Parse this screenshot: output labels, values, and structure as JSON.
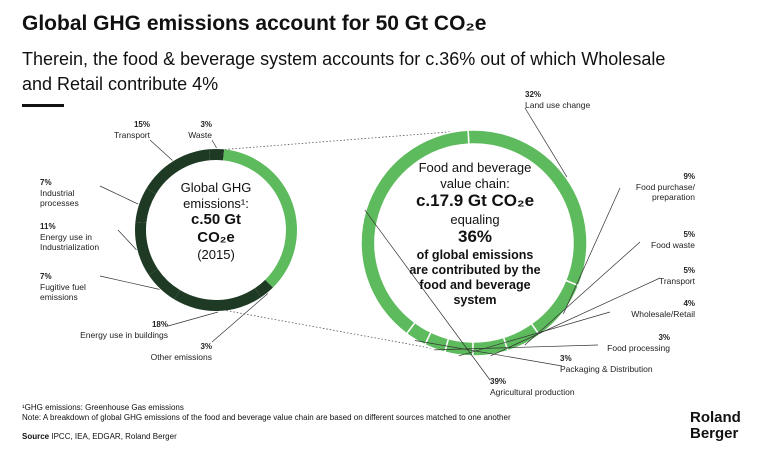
{
  "header": {
    "title": "Global GHG emissions account for 50 Gt CO₂e",
    "subtitle": "Therein, the food & beverage system accounts for c.36% out of which Wholesale and Retail contribute 4%"
  },
  "chart_data": [
    {
      "type": "pie",
      "style": "donut",
      "categories": [
        "Transport",
        "Waste",
        null,
        "Other emissions",
        "Energy use in buildings",
        "Fugitive fuel emissions",
        "Energy use in Industrialization",
        "Industrial processes"
      ],
      "values": [
        15,
        3,
        36,
        3,
        18,
        7,
        11,
        7
      ],
      "value_labels": [
        "15%",
        "3%",
        null,
        "3%",
        "18%",
        "7%",
        "11%",
        "7%"
      ],
      "colors": [
        "#1f3a24",
        "#1f3a24",
        "#5dbb5d",
        "#1f3a24",
        "#1f3a24",
        "#1f3a24",
        "#1f3a24",
        "#1f3a24"
      ],
      "center_text": [
        "Global GHG",
        "emissions¹:",
        "c.50 Gt",
        "CO₂e",
        "(2015)"
      ]
    },
    {
      "type": "pie",
      "style": "donut",
      "categories": [
        "Land use change",
        "Food purchase/ preparation",
        "Food waste",
        "Transport",
        "Wholesale/Retail",
        "Food processing",
        "Packaging & Distribution",
        "Agricultural production"
      ],
      "values": [
        32,
        9,
        5,
        5,
        4,
        3,
        3,
        39
      ],
      "value_labels": [
        "32%",
        "9%",
        "5%",
        "5%",
        "4%",
        "3%",
        "3%",
        "39%"
      ],
      "colors": [
        "#5dbb5d",
        "#5dbb5d",
        "#5dbb5d",
        "#5dbb5d",
        "#5dbb5d",
        "#5dbb5d",
        "#5dbb5d",
        "#5dbb5d"
      ],
      "center_text": [
        "Food and beverage",
        "value chain:",
        "c.17.9 Gt CO₂e",
        "equaling",
        "36%",
        "of global emissions",
        "are contributed by the",
        "food and beverage",
        "system"
      ]
    }
  ],
  "footnotes": [
    "¹GHG emissions: Greenhouse Gas emissions",
    "Note: A breakdown of global GHG emissions of the food and beverage value chain are based on different sources matched to one another"
  ],
  "source": {
    "label": "Source",
    "text": "IPCC, IEA, EDGAR, Roland Berger"
  },
  "logo": [
    "Roland",
    "Berger"
  ]
}
